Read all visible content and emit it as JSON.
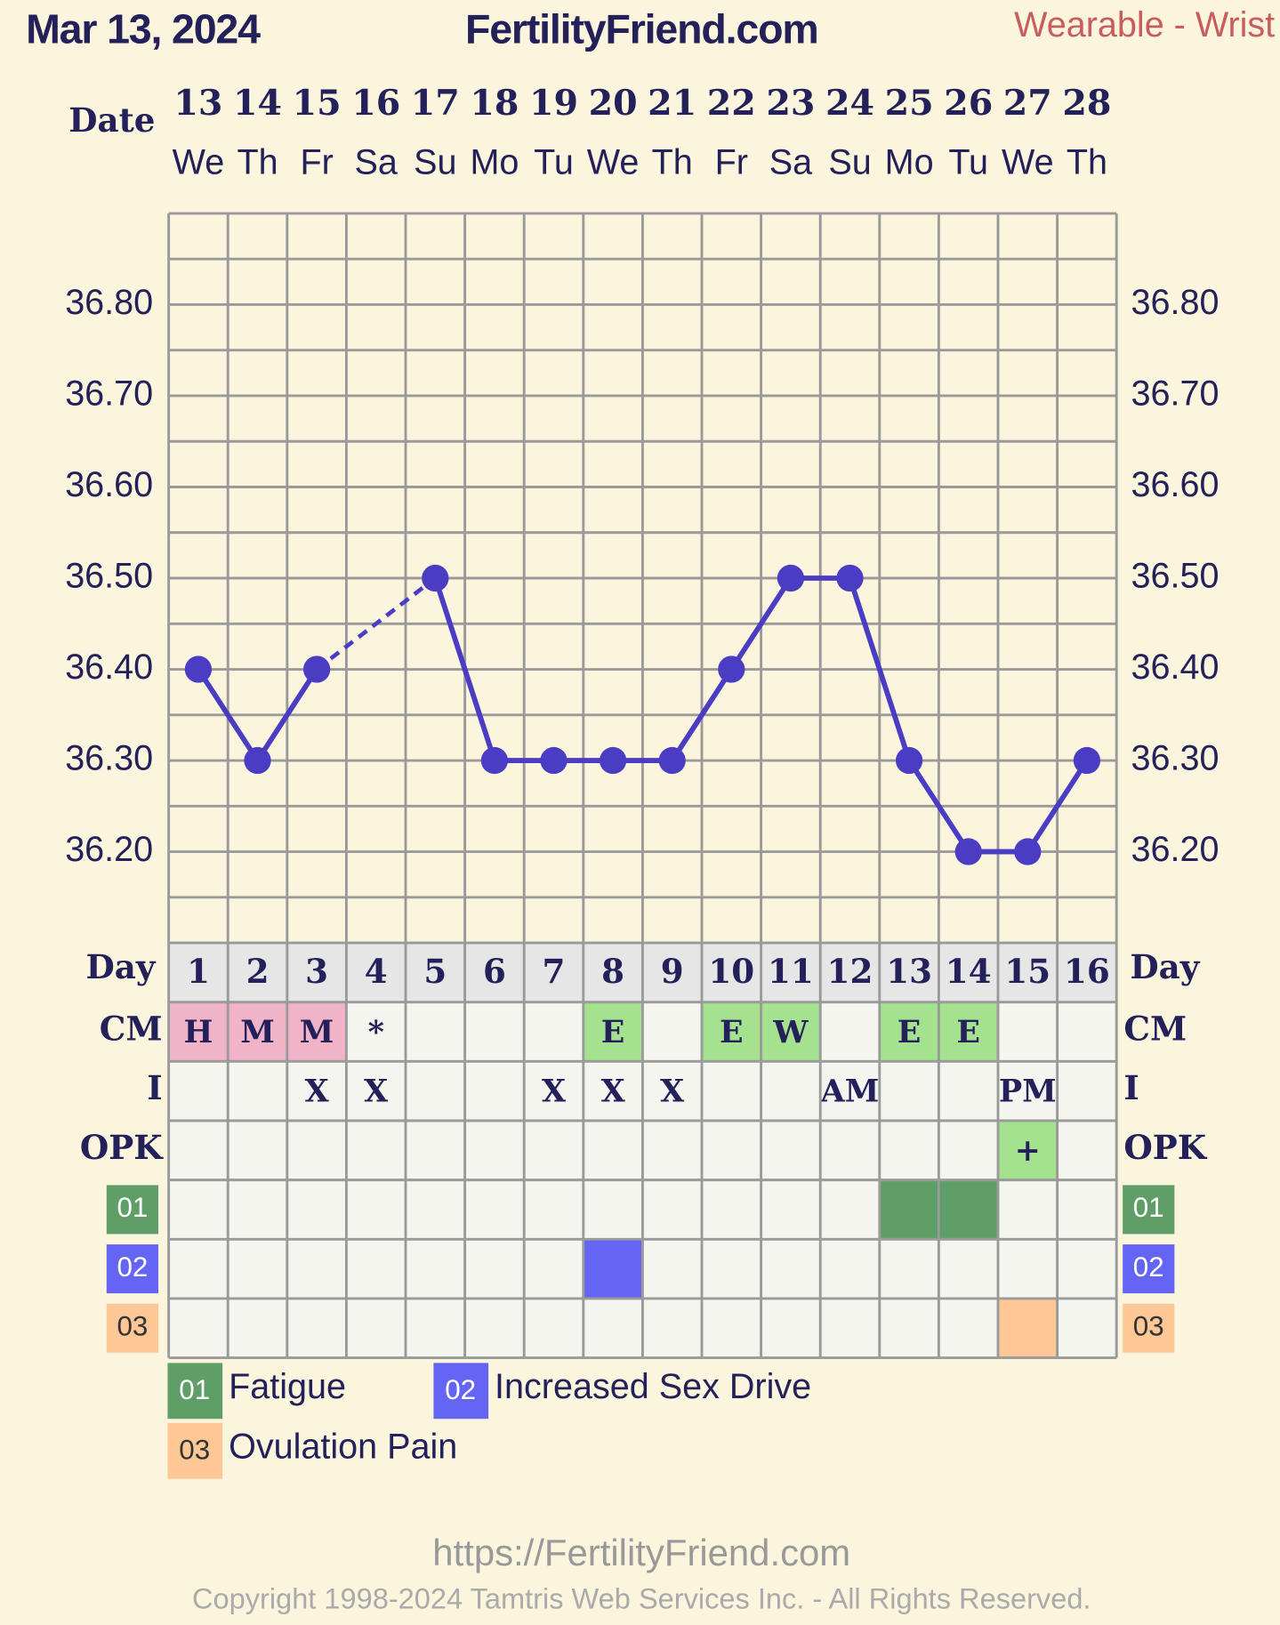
{
  "chart_data": {
    "type": "line",
    "title": "FertilityFriend.com",
    "date": "Mar 13, 2024",
    "source": "Wearable - Wrist",
    "date_label": "Date",
    "categories": [
      "13",
      "14",
      "15",
      "16",
      "17",
      "18",
      "19",
      "20",
      "21",
      "22",
      "23",
      "24",
      "25",
      "26",
      "27",
      "28"
    ],
    "weekdays": [
      "We",
      "Th",
      "Fr",
      "Sa",
      "Su",
      "Mo",
      "Tu",
      "We",
      "Th",
      "Fr",
      "Sa",
      "Su",
      "Mo",
      "Tu",
      "We",
      "Th"
    ],
    "values": [
      36.4,
      36.3,
      36.4,
      null,
      36.5,
      36.3,
      36.3,
      36.3,
      36.3,
      36.4,
      36.5,
      36.5,
      36.3,
      36.2,
      36.2,
      36.3
    ],
    "color": "#4a3dc4",
    "bridge_gaps": "dashed",
    "ylim": [
      36.1,
      36.9
    ],
    "yticks": [
      {
        "value": 36.2,
        "label": "36.20"
      },
      {
        "value": 36.3,
        "label": "36.30"
      },
      {
        "value": 36.4,
        "label": "36.40"
      },
      {
        "value": 36.5,
        "label": "36.50"
      },
      {
        "value": 36.6,
        "label": "36.60"
      },
      {
        "value": 36.7,
        "label": "36.70"
      },
      {
        "value": 36.8,
        "label": "36.80"
      }
    ],
    "minor_yticks": [
      36.15,
      36.25,
      36.35,
      36.45,
      36.55,
      36.65,
      36.75,
      36.85
    ],
    "grid": true,
    "day_label": "Day",
    "cycle_days": [
      1,
      2,
      3,
      4,
      5,
      6,
      7,
      8,
      9,
      10,
      11,
      12,
      13,
      14,
      15,
      16
    ],
    "rows": [
      {
        "label": "CM",
        "cells": [
          "H",
          "M",
          "M",
          "*",
          null,
          null,
          null,
          "E",
          null,
          "E",
          "W",
          null,
          "E",
          "E",
          null,
          null
        ]
      },
      {
        "label": "I",
        "cells": [
          null,
          null,
          "X",
          "X",
          null,
          null,
          "X",
          "X",
          "X",
          null,
          null,
          "AM",
          null,
          null,
          "PM",
          null
        ]
      },
      {
        "label": "OPK",
        "cells": [
          null,
          null,
          null,
          null,
          null,
          null,
          null,
          null,
          null,
          null,
          null,
          null,
          null,
          null,
          "+",
          null
        ]
      }
    ],
    "cell_colors": {
      "H": "#f1b3c8",
      "M": "#f1b3c8",
      "E": "#a4e28f",
      "W": "#a4e28f",
      "+": "#a4e28f"
    },
    "symptoms": [
      {
        "code": "01",
        "name": "Fatigue",
        "color": "#5f9e66",
        "days": [
          13,
          14
        ]
      },
      {
        "code": "02",
        "name": "Increased Sex Drive",
        "color": "#6464f5",
        "days": [
          8
        ]
      },
      {
        "code": "03",
        "name": "Ovulation Pain",
        "color": "#fdc896",
        "days": [
          15
        ]
      }
    ],
    "url": "https://FertilityFriend.com",
    "copyright": "Copyright 1998-2024 Tamtris Web Services Inc. - All Rights Reserved."
  }
}
